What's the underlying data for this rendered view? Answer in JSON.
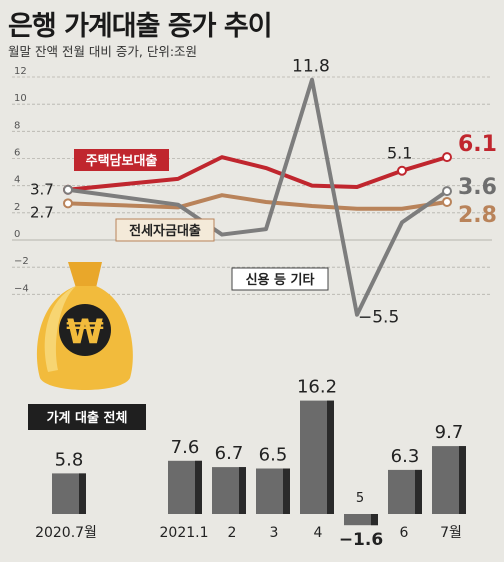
{
  "title": "은행 가계대출 증가 추이",
  "subtitle": "월말 잔액 전월 대비 증가, 단위:조원",
  "colors": {
    "background": "#e9e8e3",
    "mortgage": "#c0262e",
    "jeonse": "#b9835a",
    "credit": "#7d7d7d",
    "bar": "#6b6b6b",
    "bar_shadow": "#2a2a2a",
    "bag": "#f2bb3c"
  },
  "icon": "money-bag-won-icon",
  "chart_data": [
    {
      "type": "line",
      "x": [
        "2021.1",
        "2",
        "3",
        "4",
        "5",
        "6",
        "7월"
      ],
      "ylim": [
        -5.5,
        12
      ],
      "yticks": [
        12,
        10,
        8,
        6,
        4,
        2,
        0,
        -2,
        -4
      ],
      "ytick_labels": [
        "12",
        "10",
        "8",
        "6",
        "4",
        "2",
        "0",
        "−2",
        "−4"
      ],
      "start_label_x": "2020.7월",
      "series": [
        {
          "name": "주택담보대출",
          "color": "#c0262e",
          "start": 3.7,
          "start_label": "3.7",
          "values": [
            4.5,
            6.1,
            5.3,
            4.0,
            3.9,
            5.1,
            6.1
          ],
          "end_label": "6.1",
          "point_labels": [
            {
              "index": 5,
              "text": "5.1"
            }
          ]
        },
        {
          "name": "전세자금대출",
          "color": "#b9835a",
          "start": 2.7,
          "start_label": "2.7",
          "values": [
            2.4,
            3.3,
            2.8,
            2.5,
            2.3,
            2.3,
            2.8
          ],
          "end_label": "2.8"
        },
        {
          "name": "신용 등 기타",
          "color": "#7d7d7d",
          "start": 3.7,
          "values": [
            2.6,
            0.4,
            0.8,
            11.8,
            -5.5,
            1.3,
            3.6
          ],
          "end_label": "3.6",
          "point_labels": [
            {
              "index": 3,
              "text": "11.8"
            },
            {
              "index": 4,
              "text": "−5.5"
            }
          ]
        }
      ]
    },
    {
      "type": "bar",
      "name": "가계 대출 전체",
      "categories": [
        "2020.7월",
        "2021.1",
        "2",
        "3",
        "4",
        "5",
        "6",
        "7월"
      ],
      "values": [
        5.8,
        7.6,
        6.7,
        6.5,
        16.2,
        -1.6,
        6.3,
        9.7
      ],
      "value_labels": [
        "5.8",
        "7.6",
        "6.7",
        "6.5",
        "16.2",
        "−1.6",
        "6.3",
        "9.7"
      ]
    }
  ]
}
